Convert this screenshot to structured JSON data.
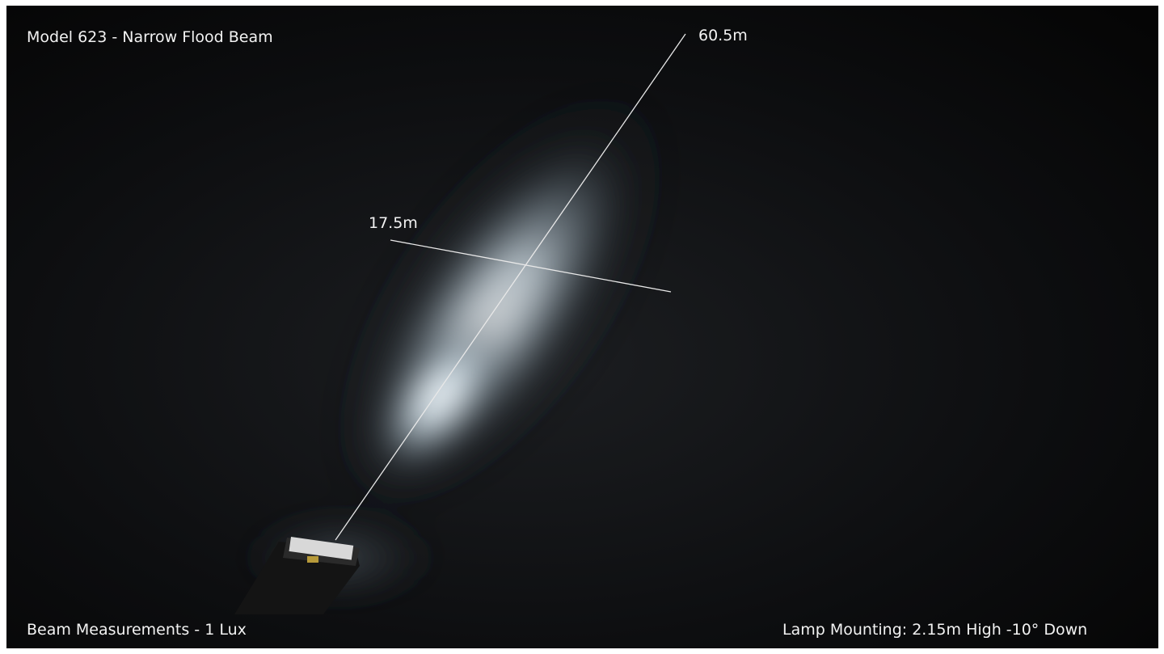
{
  "header": {
    "title": "Model 623 - Narrow Flood Beam"
  },
  "measurements": {
    "length": "60.5m",
    "width": "17.5m"
  },
  "footer": {
    "left": "Beam Measurements - 1 Lux",
    "right": "Lamp Mounting: 2.15m High -10° Down"
  }
}
